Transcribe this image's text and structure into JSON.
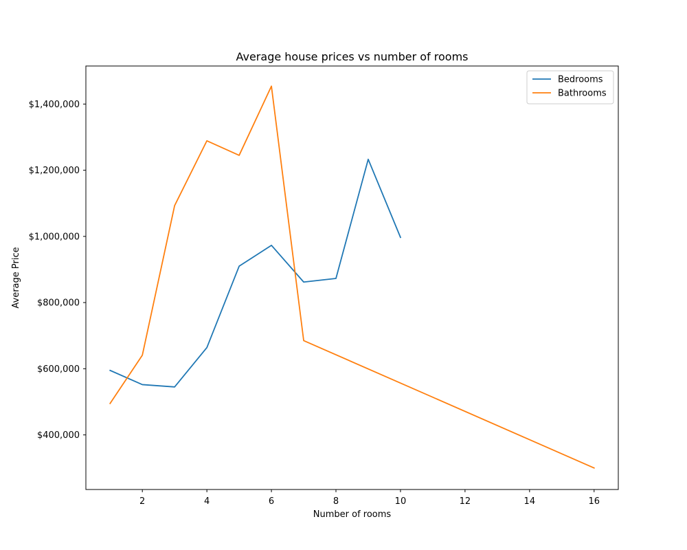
{
  "chart_data": {
    "type": "line",
    "title": "Average house prices vs number of rooms",
    "xlabel": "Number of rooms",
    "ylabel": "Average Price",
    "xlim": [
      0.25,
      16.75
    ],
    "ylim": [
      235000,
      1515000
    ],
    "x_ticks": [
      2,
      4,
      6,
      8,
      10,
      12,
      14,
      16
    ],
    "y_ticks": [
      400000,
      600000,
      800000,
      1000000,
      1200000,
      1400000
    ],
    "y_tick_labels": [
      "$400,000",
      "$600,000",
      "$800,000",
      "$1,000,000",
      "$1,200,000",
      "$1,400,000"
    ],
    "grid": false,
    "legend": "upper right",
    "series": [
      {
        "name": "Bedrooms",
        "color": "#1f77b4",
        "x": [
          1,
          2,
          3,
          4,
          5,
          6,
          7,
          8,
          9,
          10
        ],
        "y": [
          595000,
          552000,
          545000,
          664000,
          910000,
          973000,
          862000,
          873000,
          1233000,
          997000
        ]
      },
      {
        "name": "Bathrooms",
        "color": "#ff7f0e",
        "x": [
          1,
          2,
          3,
          4,
          5,
          6,
          7,
          16
        ],
        "y": [
          495000,
          641000,
          1093000,
          1289000,
          1245000,
          1454000,
          685000,
          300000
        ]
      }
    ]
  }
}
